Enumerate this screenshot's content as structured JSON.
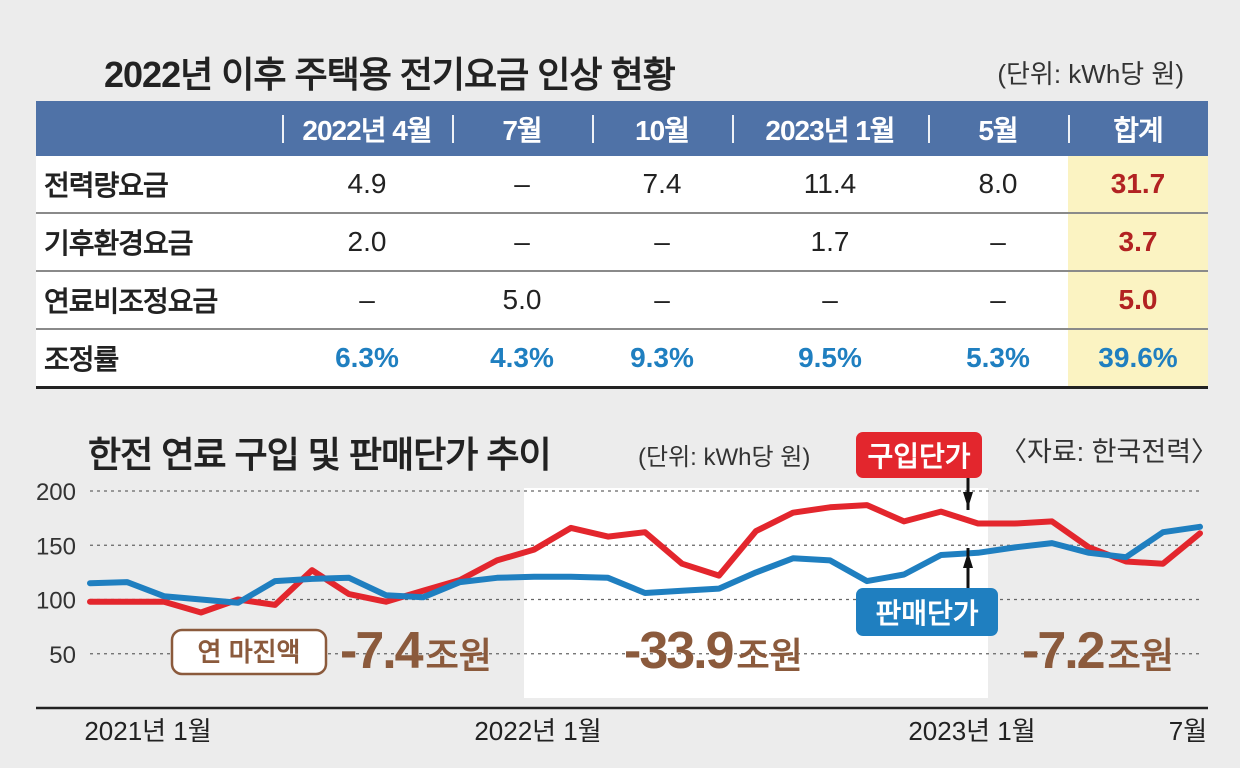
{
  "table": {
    "title": "2022년 이후 주택용 전기요금 인상 현황",
    "unit": "(단위: kWh당 원)",
    "columns": [
      "2022년 4월",
      "7월",
      "10월",
      "2023년 1월",
      "5월",
      "합계"
    ],
    "rows": [
      {
        "label": "전력량요금",
        "values": [
          "4.9",
          "–",
          "7.4",
          "11.4",
          "8.0",
          "31.7"
        ]
      },
      {
        "label": "기후환경요금",
        "values": [
          "2.0",
          "–",
          "–",
          "1.7",
          "–",
          "3.7"
        ]
      },
      {
        "label": "연료비조정요금",
        "values": [
          "–",
          "5.0",
          "–",
          "–",
          "–",
          "5.0"
        ]
      },
      {
        "label": "조정률",
        "values": [
          "6.3%",
          "4.3%",
          "9.3%",
          "9.5%",
          "5.3%",
          "39.6%"
        ]
      }
    ]
  },
  "chart_data": {
    "type": "line",
    "title": "한전 연료 구입 및 판매단가 추이",
    "unit": "(단위: kWh당 원)",
    "source": "〈자료: 한국전력〉",
    "ylim": [
      0,
      200
    ],
    "yticks": [
      "200",
      "150",
      "100",
      "50"
    ],
    "xtick_labels": [
      "2021년 1월",
      "2022년 1월",
      "2023년 1월",
      "7월"
    ],
    "x": [
      "2021-01",
      "2021-02",
      "2021-03",
      "2021-04",
      "2021-05",
      "2021-06",
      "2021-07",
      "2021-08",
      "2021-09",
      "2021-10",
      "2021-11",
      "2021-12",
      "2022-01",
      "2022-02",
      "2022-03",
      "2022-04",
      "2022-05",
      "2022-06",
      "2022-07",
      "2022-08",
      "2022-09",
      "2022-10",
      "2022-11",
      "2022-12",
      "2023-01",
      "2023-02",
      "2023-03",
      "2023-04",
      "2023-05",
      "2023-06",
      "2023-07"
    ],
    "series": [
      {
        "name": "구입단가",
        "color": "#e3262d",
        "values": [
          98,
          98,
          98,
          88,
          100,
          95,
          127,
          105,
          98,
          108,
          118,
          136,
          146,
          166,
          158,
          162,
          133,
          122,
          163,
          180,
          185,
          187,
          172,
          181,
          170,
          170,
          172,
          148,
          135,
          133,
          161
        ]
      },
      {
        "name": "판매단가",
        "color": "#1f7fc0",
        "values": [
          115,
          116,
          103,
          100,
          97,
          117,
          119,
          120,
          104,
          102,
          116,
          120,
          121,
          121,
          120,
          106,
          108,
          110,
          125,
          138,
          136,
          117,
          123,
          141,
          143,
          148,
          152,
          143,
          139,
          162,
          167
        ]
      }
    ],
    "annotations": {
      "margin_label": "연 마진액",
      "margins": [
        {
          "value": "-7.4",
          "unit": "조원"
        },
        {
          "value": "-33.9",
          "unit": "조원"
        },
        {
          "value": "-7.2",
          "unit": "조원"
        }
      ]
    }
  }
}
